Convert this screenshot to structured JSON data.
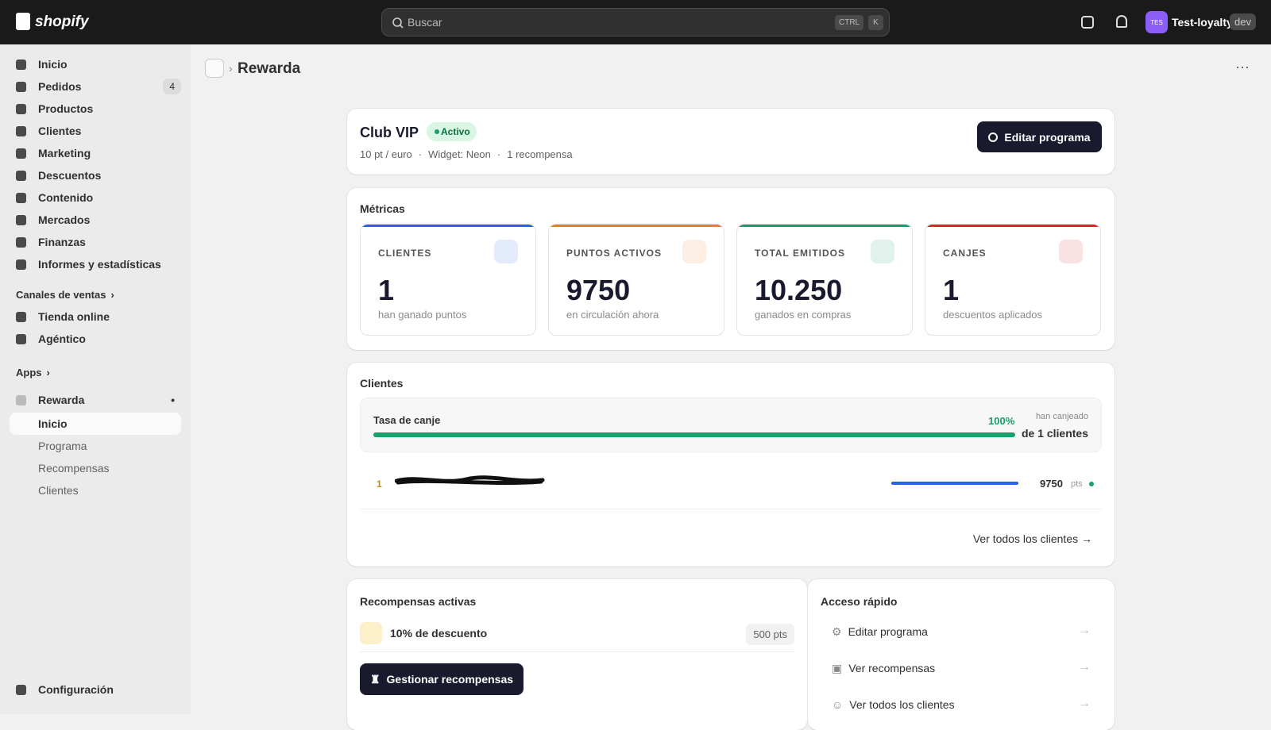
{
  "topbar": {
    "brand": "shopify",
    "search": "Buscar",
    "shortcut": [
      "CTRL",
      "K"
    ],
    "store_initials": "TES",
    "store": "Test-loyalty",
    "badge": "dev"
  },
  "sidebar": {
    "nav": [
      {
        "label": "Inicio"
      },
      {
        "label": "Pedidos",
        "count": "4"
      },
      {
        "label": "Productos"
      },
      {
        "label": "Clientes"
      },
      {
        "label": "Marketing"
      },
      {
        "label": "Descuentos"
      },
      {
        "label": "Contenido"
      },
      {
        "label": "Mercados"
      },
      {
        "label": "Finanzas"
      },
      {
        "label": "Informes y estadísticas"
      }
    ],
    "sales_channels": {
      "title": "Canales de ventas",
      "items": [
        "Tienda online",
        "Agéntico"
      ]
    },
    "apps": {
      "title": "Apps",
      "app": "Rewarda",
      "items": [
        "Inicio",
        "Programa",
        "Recompensas",
        "Clientes"
      ]
    },
    "settings": "Configuración"
  },
  "breadcrumb": "Rewarda",
  "program": {
    "name": "Club VIP",
    "status": "Activo",
    "meta": [
      "10 pt / euro",
      "Widget: Neon",
      "1 recompensa"
    ],
    "edit": "Editar programa"
  },
  "metrics": {
    "title": "Métricas",
    "cards": [
      {
        "label": "CLIENTES",
        "value": "1",
        "caption": "han ganado puntos",
        "color": "#2563eb"
      },
      {
        "label": "PUNTOS ACTIVOS",
        "value": "9750",
        "caption": "en circulación ahora",
        "color": "#e67e22"
      },
      {
        "label": "TOTAL EMITIDOS",
        "value": "10.250",
        "caption": "ganados en compras",
        "color": "#16a06a"
      },
      {
        "label": "CANJES",
        "value": "1",
        "caption": "descuentos aplicados",
        "color": "#dc2626"
      }
    ]
  },
  "customers": {
    "title": "Clientes",
    "rate_label": "Tasa de canje",
    "rate": "100%",
    "rate_note": "han canjeado",
    "rate_total": "de 1 clientes",
    "rows": [
      {
        "rank": "1",
        "points": "9750",
        "unit": "pts"
      }
    ],
    "link": "Ver todos los clientes"
  },
  "rewards": {
    "title": "Recompensas activas",
    "items": [
      {
        "name": "10% de descuento",
        "cost": "500 pts"
      }
    ],
    "button": "Gestionar recompensas"
  },
  "quick": {
    "title": "Acceso rápido",
    "items": [
      "Editar programa",
      "Ver recompensas",
      "Ver todos los clientes"
    ]
  }
}
